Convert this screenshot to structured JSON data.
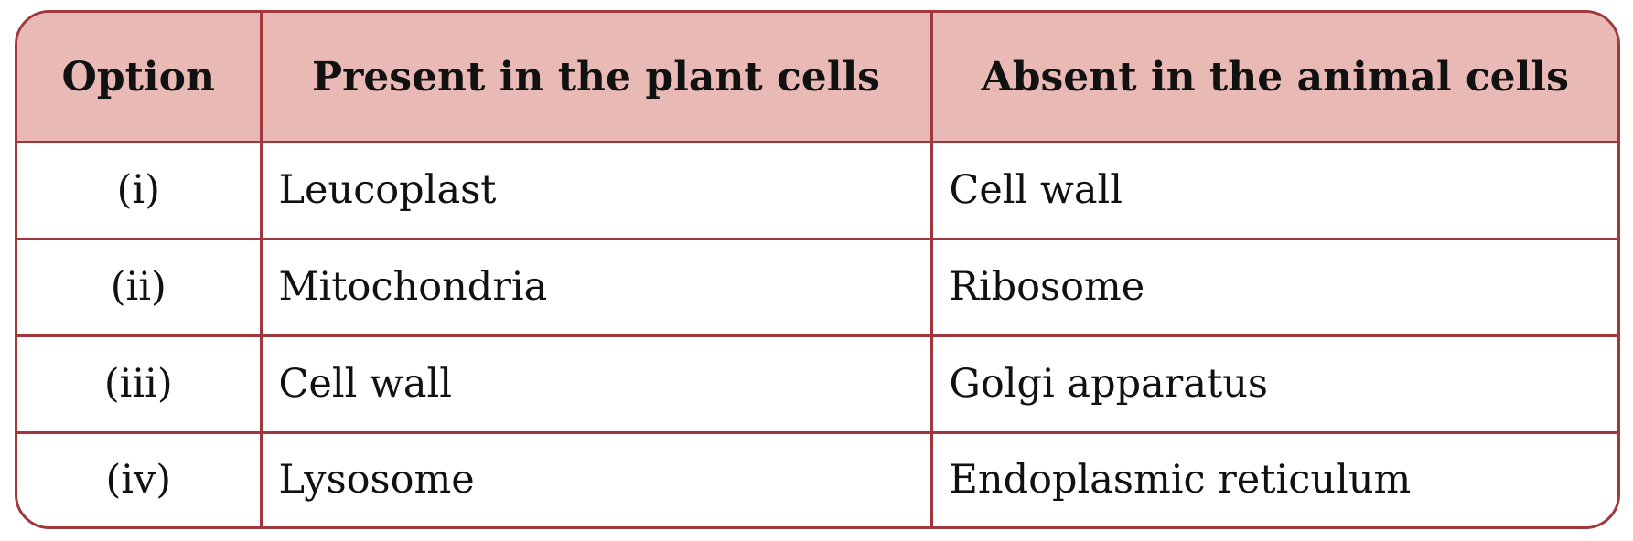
{
  "table": {
    "columns": [
      "Option",
      "Present in the plant cells",
      "Absent in the animal cells"
    ],
    "rows": [
      [
        "(i)",
        "Leucoplast",
        "Cell wall"
      ],
      [
        "(ii)",
        "Mitochondria",
        "Ribosome"
      ],
      [
        "(iii)",
        "Cell wall",
        "Golgi apparatus"
      ],
      [
        "(iv)",
        "Lysosome",
        "Endoplasmic reticulum"
      ]
    ]
  }
}
